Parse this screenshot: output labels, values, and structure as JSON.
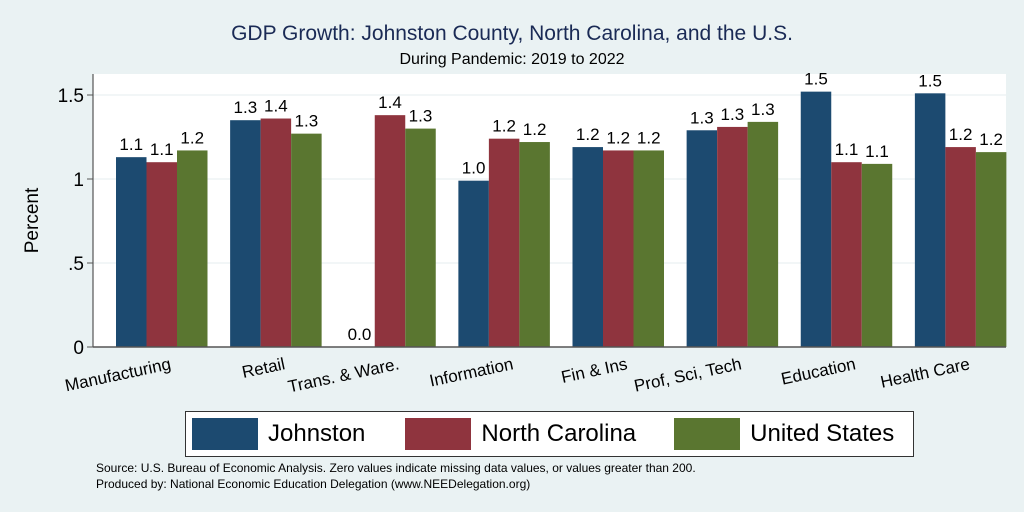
{
  "chart_data": {
    "type": "bar",
    "title": "GDP Growth: Johnston County, North Carolina, and the U.S.",
    "subtitle": "During Pandemic: 2019 to 2022",
    "xlabel": "",
    "ylabel": "Percent",
    "ylim": [
      0,
      1.6
    ],
    "yticks": [
      0,
      0.5,
      1,
      1.5
    ],
    "ytick_labels": [
      "0",
      ".5",
      "1",
      "1.5"
    ],
    "grid": true,
    "legend_position": "bottom",
    "categories": [
      "Manufacturing",
      "Retail",
      "Trans. & Ware.",
      "Information",
      "Fin & Ins",
      "Prof, Sci, Tech",
      "Education",
      "Health Care"
    ],
    "series": [
      {
        "name": "Johnston",
        "color": "#1c4a70",
        "values": [
          1.13,
          1.35,
          0.0,
          0.99,
          1.19,
          1.29,
          1.52,
          1.51
        ],
        "labels": [
          "1.1",
          "1.3",
          "0.0",
          "1.0",
          "1.2",
          "1.3",
          "1.5",
          "1.5"
        ]
      },
      {
        "name": "North Carolina",
        "color": "#8f343e",
        "values": [
          1.1,
          1.36,
          1.38,
          1.24,
          1.17,
          1.31,
          1.1,
          1.19
        ],
        "labels": [
          "1.1",
          "1.4",
          "1.4",
          "1.2",
          "1.2",
          "1.3",
          "1.1",
          "1.2"
        ]
      },
      {
        "name": "United States",
        "color": "#5a7630",
        "values": [
          1.17,
          1.27,
          1.3,
          1.22,
          1.17,
          1.34,
          1.09,
          1.16
        ],
        "labels": [
          "1.2",
          "1.3",
          "1.3",
          "1.2",
          "1.2",
          "1.3",
          "1.1",
          "1.2"
        ]
      }
    ]
  },
  "notes": {
    "source": "Source: U.S. Bureau of Economic Analysis. Zero values indicate missing data values, or values greater than 200.",
    "produced_by": "Produced by: National Economic Education Delegation (www.NEEDelegation.org)"
  }
}
